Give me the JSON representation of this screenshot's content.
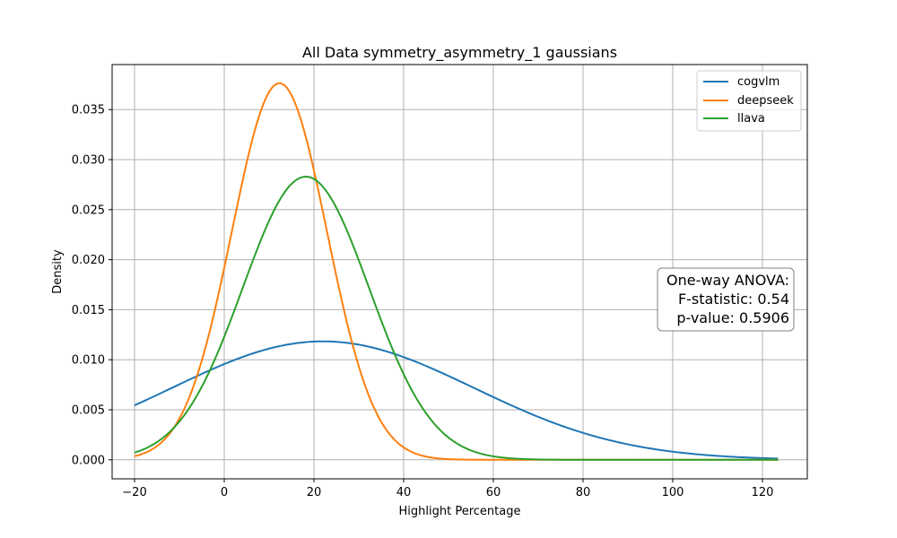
{
  "chart_data": {
    "type": "line",
    "title": "All Data symmetry_asymmetry_1 gaussians",
    "xlabel": "Highlight Percentage",
    "ylabel": "Density",
    "xlim": [
      -25,
      130
    ],
    "ylim": [
      -0.0019,
      0.0395
    ],
    "xticks": [
      -20,
      0,
      20,
      40,
      60,
      80,
      100,
      120
    ],
    "xtick_labels": [
      "−20",
      "0",
      "20",
      "40",
      "60",
      "80",
      "100",
      "120"
    ],
    "yticks": [
      0.0,
      0.005,
      0.01,
      0.015,
      0.02,
      0.025,
      0.03,
      0.035
    ],
    "ytick_labels": [
      "0.000",
      "0.005",
      "0.010",
      "0.015",
      "0.020",
      "0.025",
      "0.030",
      "0.035"
    ],
    "grid": true,
    "x_range": [
      -20,
      123.5
    ],
    "series": [
      {
        "name": "cogvlm",
        "color": "#1f77b4",
        "mean": 22.0,
        "std": 33.7
      },
      {
        "name": "deepseek",
        "color": "#ff7f0e",
        "mean": 12.3,
        "std": 10.6
      },
      {
        "name": "llava",
        "color": "#2ca02c",
        "mean": 18.2,
        "std": 14.1
      }
    ],
    "legend_position": "top-right",
    "annotation": {
      "lines": [
        "One-way ANOVA:",
        "F-statistic: 0.54",
        "p-value: 0.5906"
      ]
    }
  }
}
